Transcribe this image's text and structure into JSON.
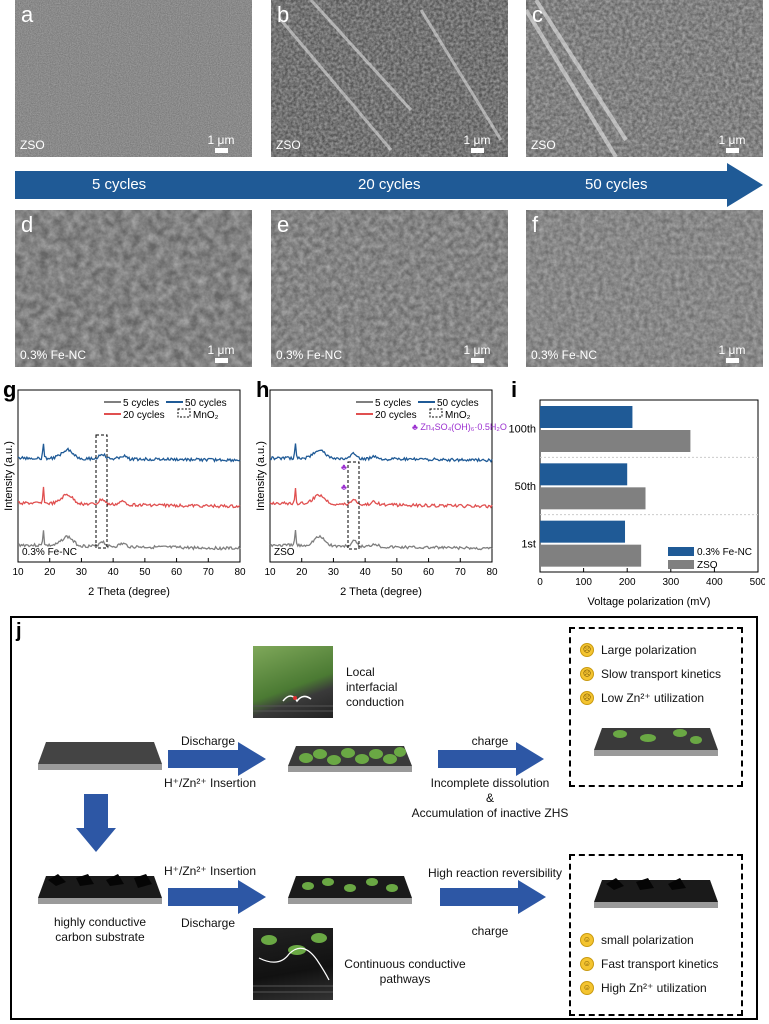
{
  "sem_panels": [
    {
      "letter": "a",
      "sample": "ZSO",
      "scale": "1 μm"
    },
    {
      "letter": "b",
      "sample": "ZSO",
      "scale": "1 μm"
    },
    {
      "letter": "c",
      "sample": "ZSO",
      "scale": "1 μm"
    },
    {
      "letter": "d",
      "sample": "0.3% Fe-NC",
      "scale": "1 μm"
    },
    {
      "letter": "e",
      "sample": "0.3% Fe-NC",
      "scale": "1 μm"
    },
    {
      "letter": "f",
      "sample": "0.3% Fe-NC",
      "scale": "1 μm"
    }
  ],
  "cycle_arrow": {
    "labels": [
      "5 cycles",
      "20 cycles",
      "50 cycles"
    ],
    "color": "#1f5a96"
  },
  "chart_data": [
    {
      "panel": "g",
      "type": "line",
      "xlabel": "2 Theta (degree)",
      "ylabel": "Intensity (a.u.)",
      "xlim": [
        10,
        80
      ],
      "xticks": [
        10,
        20,
        30,
        40,
        50,
        60,
        70,
        80
      ],
      "series": [
        {
          "name": "5 cycles",
          "color": "#7f7f7f"
        },
        {
          "name": "20 cycles",
          "color": "#e05050"
        },
        {
          "name": "50 cycles",
          "color": "#1f5a96"
        }
      ],
      "box_label": "MnO₂",
      "sample": "0.3% Fe-NC"
    },
    {
      "panel": "h",
      "type": "line",
      "xlabel": "2 Theta (degree)",
      "ylabel": "Intensity (a.u.)",
      "xlim": [
        10,
        80
      ],
      "xticks": [
        10,
        20,
        30,
        40,
        50,
        60,
        70,
        80
      ],
      "series": [
        {
          "name": "5 cycles",
          "color": "#7f7f7f"
        },
        {
          "name": "20 cycles",
          "color": "#e05050"
        },
        {
          "name": "50 cycles",
          "color": "#1f5a96"
        }
      ],
      "box_label": "MnO₂",
      "marker_label": "♣ Zn₄SO₄(OH)₆·0.5H₂O",
      "marker_color": "#9b30d0",
      "sample": "ZSO"
    },
    {
      "panel": "i",
      "type": "bar",
      "xlabel": "Voltage polarization (mV)",
      "xlim": [
        0,
        500
      ],
      "xticks": [
        0,
        100,
        200,
        300,
        400,
        500
      ],
      "categories": [
        "100th",
        "50th",
        "1st"
      ],
      "series": [
        {
          "name": "0.3% Fe-NC",
          "color": "#1f5a96",
          "values": [
            212,
            200,
            195
          ]
        },
        {
          "name": "ZSO",
          "color": "#808080",
          "values": [
            345,
            242,
            232
          ]
        }
      ]
    }
  ],
  "schematic": {
    "letter": "j",
    "local_conduction": "Local interfacial conduction",
    "top_discharge": "Discharge",
    "top_insertion": "H⁺/Zn²⁺ Insertion",
    "top_charge": "charge",
    "incomplete1": "Incomplete dissolution",
    "incomplete2": "&",
    "incomplete3": "Accumulation of inactive ZHS",
    "top_bullets": [
      "Large polarization",
      "Slow transport  kinetics",
      "Low Zn²⁺ utilization"
    ],
    "bot_insertion": "H⁺/Zn²⁺ Insertion",
    "bot_discharge": "Discharge",
    "high_rev": "High reaction reversibility",
    "bot_charge": "charge",
    "substrate1": "highly conductive",
    "substrate2": "carbon substrate",
    "continuous1": "Continuous conductive",
    "continuous2": "pathways",
    "bot_bullets": [
      "small polarization",
      "Fast transport  kinetics",
      "High Zn²⁺ utilization"
    ],
    "sad_icon": "frowning-face-icon",
    "happy_icon": "smiling-face-icon",
    "arrow_color": "#2d57a5"
  }
}
